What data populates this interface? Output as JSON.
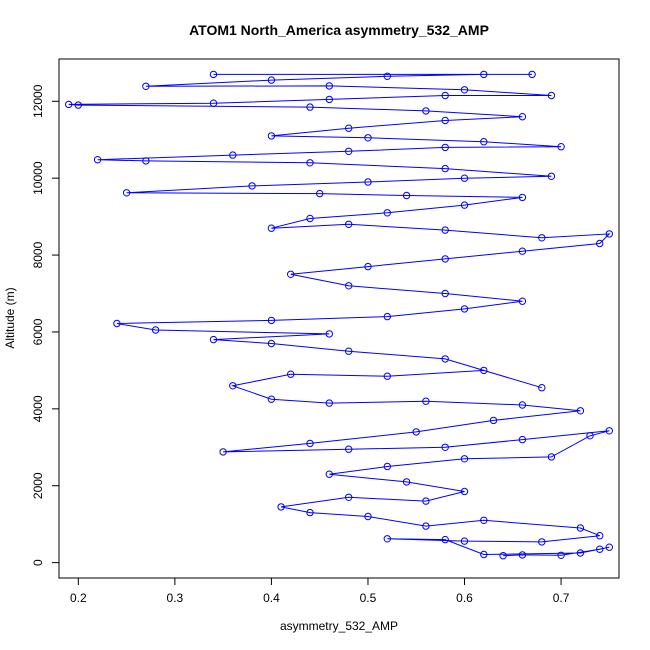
{
  "chart_data": {
    "type": "line",
    "title": "ATOM1 North_America asymmetry_532_AMP",
    "xlabel": "asymmetry_532_AMP",
    "ylabel": "Altitude (m)",
    "xlim": [
      0.18,
      0.76
    ],
    "ylim": [
      -400,
      13100
    ],
    "xticks": [
      0.2,
      0.3,
      0.4,
      0.5,
      0.6,
      0.7
    ],
    "yticks": [
      0,
      2000,
      4000,
      6000,
      8000,
      10000,
      12000
    ],
    "series_color": "#0000ff",
    "marker": "open-circle",
    "series": [
      {
        "values": [
          [
            0.64,
            180
          ],
          [
            0.66,
            200
          ],
          [
            0.7,
            190
          ],
          [
            0.74,
            350
          ],
          [
            0.75,
            400
          ],
          [
            0.72,
            250
          ],
          [
            0.62,
            210
          ],
          [
            0.58,
            600
          ],
          [
            0.52,
            620
          ],
          [
            0.6,
            560
          ],
          [
            0.68,
            540
          ],
          [
            0.74,
            700
          ],
          [
            0.72,
            900
          ],
          [
            0.62,
            1100
          ],
          [
            0.56,
            950
          ],
          [
            0.5,
            1200
          ],
          [
            0.44,
            1300
          ],
          [
            0.41,
            1450
          ],
          [
            0.48,
            1700
          ],
          [
            0.56,
            1600
          ],
          [
            0.6,
            1850
          ],
          [
            0.54,
            2100
          ],
          [
            0.46,
            2300
          ],
          [
            0.52,
            2500
          ],
          [
            0.6,
            2700
          ],
          [
            0.69,
            2750
          ],
          [
            0.73,
            3300
          ],
          [
            0.75,
            3430
          ],
          [
            0.66,
            3200
          ],
          [
            0.58,
            3000
          ],
          [
            0.48,
            2950
          ],
          [
            0.35,
            2880
          ],
          [
            0.44,
            3100
          ],
          [
            0.55,
            3400
          ],
          [
            0.63,
            3700
          ],
          [
            0.72,
            3950
          ],
          [
            0.66,
            4100
          ],
          [
            0.56,
            4200
          ],
          [
            0.46,
            4150
          ],
          [
            0.4,
            4250
          ],
          [
            0.36,
            4600
          ],
          [
            0.42,
            4900
          ],
          [
            0.52,
            4850
          ],
          [
            0.62,
            5000
          ],
          [
            0.68,
            4550
          ],
          [
            0.58,
            5300
          ],
          [
            0.48,
            5500
          ],
          [
            0.4,
            5700
          ],
          [
            0.34,
            5800
          ],
          [
            0.46,
            5950
          ],
          [
            0.28,
            6050
          ],
          [
            0.24,
            6220
          ],
          [
            0.4,
            6300
          ],
          [
            0.52,
            6400
          ],
          [
            0.6,
            6600
          ],
          [
            0.66,
            6800
          ],
          [
            0.58,
            7000
          ],
          [
            0.48,
            7200
          ],
          [
            0.42,
            7500
          ],
          [
            0.5,
            7700
          ],
          [
            0.58,
            7900
          ],
          [
            0.66,
            8100
          ],
          [
            0.74,
            8300
          ],
          [
            0.75,
            8550
          ],
          [
            0.68,
            8450
          ],
          [
            0.58,
            8650
          ],
          [
            0.48,
            8800
          ],
          [
            0.4,
            8700
          ],
          [
            0.44,
            8950
          ],
          [
            0.52,
            9100
          ],
          [
            0.6,
            9300
          ],
          [
            0.66,
            9500
          ],
          [
            0.54,
            9550
          ],
          [
            0.45,
            9600
          ],
          [
            0.25,
            9620
          ],
          [
            0.38,
            9800
          ],
          [
            0.5,
            9900
          ],
          [
            0.6,
            10000
          ],
          [
            0.69,
            10050
          ],
          [
            0.58,
            10250
          ],
          [
            0.44,
            10400
          ],
          [
            0.27,
            10450
          ],
          [
            0.22,
            10480
          ],
          [
            0.36,
            10600
          ],
          [
            0.48,
            10700
          ],
          [
            0.58,
            10800
          ],
          [
            0.7,
            10820
          ],
          [
            0.62,
            10950
          ],
          [
            0.5,
            11050
          ],
          [
            0.4,
            11100
          ],
          [
            0.48,
            11300
          ],
          [
            0.58,
            11500
          ],
          [
            0.66,
            11600
          ],
          [
            0.56,
            11750
          ],
          [
            0.44,
            11850
          ],
          [
            0.2,
            11900
          ],
          [
            0.19,
            11920
          ],
          [
            0.34,
            11950
          ],
          [
            0.46,
            12050
          ],
          [
            0.58,
            12150
          ],
          [
            0.69,
            12150
          ],
          [
            0.6,
            12300
          ],
          [
            0.46,
            12400
          ],
          [
            0.27,
            12390
          ],
          [
            0.4,
            12550
          ],
          [
            0.52,
            12650
          ],
          [
            0.62,
            12700
          ],
          [
            0.67,
            12700
          ],
          [
            0.34,
            12700
          ]
        ]
      }
    ]
  }
}
